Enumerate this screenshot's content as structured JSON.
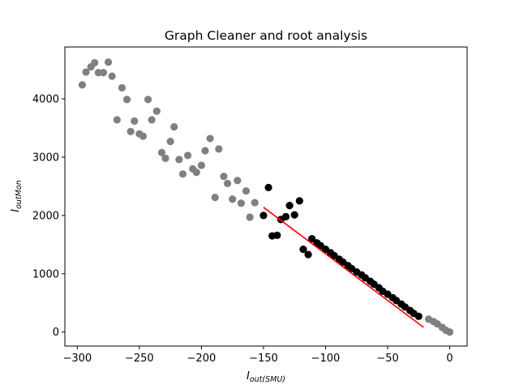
{
  "chart_data": {
    "type": "scatter",
    "title": "Graph Cleaner and root analysis",
    "xlabel": {
      "main": "I",
      "sub": "out(SMU)"
    },
    "ylabel": {
      "main": "I",
      "sub": "outMon"
    },
    "xlim": [
      -310,
      14
    ],
    "ylim": [
      -240,
      4890
    ],
    "xticks": [
      -300,
      -250,
      -200,
      -150,
      -100,
      -50,
      0
    ],
    "xtick_labels": [
      "−300",
      "−250",
      "−200",
      "−150",
      "−100",
      "−50",
      "0"
    ],
    "yticks": [
      0,
      1000,
      2000,
      3000,
      4000
    ],
    "ytick_labels": [
      "0",
      "1000",
      "2000",
      "3000",
      "4000"
    ],
    "grid": false,
    "legend": "none",
    "colors": {
      "discarded": "#808080",
      "kept": "#000000",
      "fit": "#ff0000"
    },
    "series": [
      {
        "role": "discarded",
        "points": [
          [
            -296,
            4240
          ],
          [
            -293,
            4460
          ],
          [
            -289,
            4550
          ],
          [
            -286,
            4620
          ],
          [
            -283,
            4450
          ],
          [
            -279,
            4450
          ],
          [
            -275,
            4630
          ],
          [
            -272,
            4390
          ],
          [
            -268,
            3640
          ],
          [
            -264,
            4190
          ],
          [
            -260,
            3990
          ],
          [
            -257,
            3440
          ],
          [
            -254,
            3620
          ],
          [
            -250,
            3400
          ],
          [
            -247,
            3360
          ],
          [
            -243,
            3990
          ],
          [
            -240,
            3640
          ],
          [
            -236,
            3790
          ],
          [
            -232,
            3080
          ],
          [
            -229,
            2980
          ],
          [
            -225,
            3270
          ],
          [
            -222,
            3520
          ],
          [
            -218,
            2960
          ],
          [
            -215,
            2710
          ],
          [
            -211,
            3030
          ],
          [
            -207,
            2800
          ],
          [
            -204,
            2740
          ],
          [
            -200,
            2860
          ],
          [
            -197,
            3110
          ],
          [
            -193,
            3320
          ],
          [
            -189,
            2310
          ],
          [
            -186,
            3140
          ],
          [
            -182,
            2670
          ],
          [
            -179,
            2550
          ],
          [
            -175,
            2280
          ],
          [
            -171,
            2600
          ],
          [
            -168,
            2210
          ],
          [
            -164,
            2420
          ],
          [
            -161,
            1970
          ],
          [
            -157,
            2220
          ],
          [
            -17,
            220
          ],
          [
            -13,
            180
          ],
          [
            -10,
            140
          ],
          [
            -6,
            80
          ],
          [
            -3,
            30
          ],
          [
            0,
            0
          ]
        ]
      },
      {
        "role": "kept",
        "points": [
          [
            -150,
            2000
          ],
          [
            -146,
            2480
          ],
          [
            -143,
            1650
          ],
          [
            -139,
            1660
          ],
          [
            -136,
            1930
          ],
          [
            -132,
            1980
          ],
          [
            -129,
            2170
          ],
          [
            -125,
            2010
          ],
          [
            -121,
            2250
          ],
          [
            -118,
            1420
          ],
          [
            -114,
            1330
          ],
          [
            -111,
            1600
          ],
          [
            -107,
            1530
          ],
          [
            -104,
            1480
          ],
          [
            -100,
            1420
          ],
          [
            -96,
            1360
          ],
          [
            -93,
            1310
          ],
          [
            -89,
            1250
          ],
          [
            -86,
            1200
          ],
          [
            -82,
            1140
          ],
          [
            -79,
            1090
          ],
          [
            -75,
            1030
          ],
          [
            -71,
            980
          ],
          [
            -68,
            930
          ],
          [
            -64,
            870
          ],
          [
            -61,
            820
          ],
          [
            -57,
            760
          ],
          [
            -54,
            700
          ],
          [
            -50,
            650
          ],
          [
            -46,
            590
          ],
          [
            -43,
            540
          ],
          [
            -39,
            480
          ],
          [
            -36,
            430
          ],
          [
            -32,
            370
          ],
          [
            -29,
            320
          ],
          [
            -25,
            270
          ]
        ]
      }
    ],
    "fit_line": [
      [
        -150,
        2140
      ],
      [
        -21,
        80
      ]
    ]
  }
}
